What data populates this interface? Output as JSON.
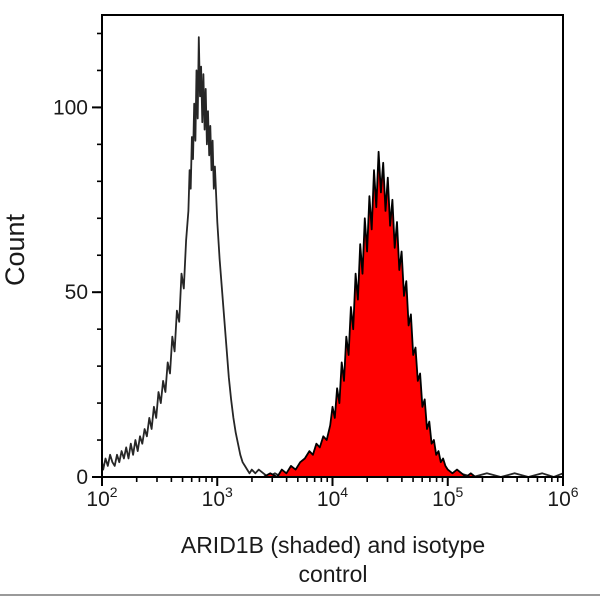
{
  "figure": {
    "ylabel": "Count",
    "xlabel_line1": "ARID1B (shaded) and isotype",
    "xlabel_line2": "control"
  },
  "chart_data": {
    "type": "area",
    "subtype": "flow-cytometry-histogram-overlay",
    "title": "",
    "xlabel": "ARID1B (shaded) and isotype control",
    "ylabel": "Count",
    "x_scale": "log10",
    "x_range_exponents": [
      2,
      6
    ],
    "x_major_tick_exponents": [
      2,
      3,
      4,
      5,
      6
    ],
    "x_major_tick_base": "10",
    "x_minor_tick_multipliers": [
      2,
      3,
      4,
      5,
      6,
      7,
      8,
      9
    ],
    "y_range": [
      0,
      125
    ],
    "y_major_ticks": [
      0,
      50,
      100
    ],
    "y_minor_tick_step": 10,
    "grid": false,
    "legend": "none",
    "colors": {
      "axis": "#000000",
      "isotype_stroke": "#262626",
      "arid1b_fill": "#ff0000",
      "arid1b_stroke": "#000000",
      "bottom_rule": "#9a9a9a"
    },
    "series": [
      {
        "name": "isotype control",
        "style": "open",
        "stroke": "#262626",
        "fill": "none",
        "peak": {
          "x_log10": 2.84,
          "count": 119
        },
        "points_log10_count": [
          [
            2.0,
            4
          ],
          [
            2.01,
            2
          ],
          [
            2.03,
            5
          ],
          [
            2.05,
            3
          ],
          [
            2.07,
            6
          ],
          [
            2.09,
            4
          ],
          [
            2.11,
            3
          ],
          [
            2.13,
            6
          ],
          [
            2.15,
            4
          ],
          [
            2.17,
            7
          ],
          [
            2.19,
            5
          ],
          [
            2.21,
            8
          ],
          [
            2.23,
            5
          ],
          [
            2.25,
            9
          ],
          [
            2.27,
            6
          ],
          [
            2.29,
            10
          ],
          [
            2.31,
            7
          ],
          [
            2.33,
            11
          ],
          [
            2.35,
            9
          ],
          [
            2.37,
            13
          ],
          [
            2.39,
            11
          ],
          [
            2.41,
            16
          ],
          [
            2.43,
            13
          ],
          [
            2.45,
            19
          ],
          [
            2.47,
            16
          ],
          [
            2.49,
            23
          ],
          [
            2.51,
            20
          ],
          [
            2.53,
            26
          ],
          [
            2.55,
            23
          ],
          [
            2.57,
            31
          ],
          [
            2.59,
            28
          ],
          [
            2.61,
            38
          ],
          [
            2.63,
            34
          ],
          [
            2.65,
            45
          ],
          [
            2.67,
            42
          ],
          [
            2.69,
            55
          ],
          [
            2.71,
            51
          ],
          [
            2.73,
            64
          ],
          [
            2.75,
            72
          ],
          [
            2.76,
            83
          ],
          [
            2.77,
            78
          ],
          [
            2.78,
            92
          ],
          [
            2.79,
            86
          ],
          [
            2.8,
            101
          ],
          [
            2.81,
            91
          ],
          [
            2.82,
            110
          ],
          [
            2.83,
            97
          ],
          [
            2.84,
            119
          ],
          [
            2.85,
            103
          ],
          [
            2.86,
            111
          ],
          [
            2.87,
            96
          ],
          [
            2.88,
            109
          ],
          [
            2.89,
            94
          ],
          [
            2.9,
            105
          ],
          [
            2.91,
            90
          ],
          [
            2.92,
            99
          ],
          [
            2.93,
            87
          ],
          [
            2.94,
            95
          ],
          [
            2.95,
            83
          ],
          [
            2.96,
            91
          ],
          [
            2.97,
            78
          ],
          [
            2.98,
            84
          ],
          [
            3.0,
            69
          ],
          [
            3.02,
            59
          ],
          [
            3.04,
            51
          ],
          [
            3.06,
            43
          ],
          [
            3.08,
            35
          ],
          [
            3.1,
            27
          ],
          [
            3.12,
            21
          ],
          [
            3.14,
            16
          ],
          [
            3.16,
            12
          ],
          [
            3.18,
            9
          ],
          [
            3.2,
            6
          ],
          [
            3.22,
            4
          ],
          [
            3.24,
            3
          ],
          [
            3.26,
            2
          ],
          [
            3.28,
            1
          ],
          [
            3.3,
            2
          ],
          [
            3.33,
            1
          ],
          [
            3.36,
            2
          ],
          [
            3.4,
            1
          ],
          [
            3.44,
            0
          ],
          [
            3.5,
            1
          ],
          [
            3.56,
            0
          ],
          [
            3.64,
            1
          ],
          [
            3.72,
            0
          ],
          [
            3.8,
            1
          ],
          [
            3.9,
            0
          ],
          [
            4.0,
            1
          ],
          [
            4.1,
            0
          ],
          [
            4.25,
            1
          ],
          [
            4.4,
            0
          ],
          [
            4.55,
            1
          ],
          [
            4.7,
            0
          ],
          [
            4.85,
            1
          ],
          [
            5.0,
            0
          ],
          [
            5.1,
            1
          ],
          [
            5.22,
            0
          ],
          [
            5.34,
            1
          ],
          [
            5.46,
            0
          ],
          [
            5.58,
            1
          ],
          [
            5.7,
            0
          ],
          [
            5.82,
            1
          ],
          [
            5.92,
            0
          ],
          [
            6.0,
            1
          ]
        ]
      },
      {
        "name": "ARID1B (shaded)",
        "style": "filled",
        "stroke": "#000000",
        "fill": "#ff0000",
        "peak": {
          "x_log10": 4.4,
          "count": 88
        },
        "points_log10_count": [
          [
            3.4,
            0
          ],
          [
            3.46,
            1
          ],
          [
            3.52,
            0
          ],
          [
            3.56,
            2
          ],
          [
            3.6,
            1
          ],
          [
            3.64,
            3
          ],
          [
            3.68,
            2
          ],
          [
            3.72,
            4
          ],
          [
            3.76,
            5
          ],
          [
            3.8,
            7
          ],
          [
            3.83,
            6
          ],
          [
            3.86,
            9
          ],
          [
            3.89,
            8
          ],
          [
            3.92,
            11
          ],
          [
            3.95,
            10
          ],
          [
            3.98,
            14
          ],
          [
            4.0,
            19
          ],
          [
            4.02,
            16
          ],
          [
            4.04,
            24
          ],
          [
            4.06,
            20
          ],
          [
            4.08,
            31
          ],
          [
            4.1,
            26
          ],
          [
            4.12,
            38
          ],
          [
            4.14,
            33
          ],
          [
            4.16,
            46
          ],
          [
            4.18,
            40
          ],
          [
            4.2,
            55
          ],
          [
            4.22,
            48
          ],
          [
            4.24,
            63
          ],
          [
            4.26,
            55
          ],
          [
            4.28,
            70
          ],
          [
            4.3,
            61
          ],
          [
            4.32,
            76
          ],
          [
            4.34,
            67
          ],
          [
            4.36,
            83
          ],
          [
            4.38,
            73
          ],
          [
            4.4,
            88
          ],
          [
            4.42,
            77
          ],
          [
            4.44,
            85
          ],
          [
            4.46,
            72
          ],
          [
            4.48,
            81
          ],
          [
            4.5,
            68
          ],
          [
            4.52,
            75
          ],
          [
            4.54,
            62
          ],
          [
            4.56,
            69
          ],
          [
            4.58,
            56
          ],
          [
            4.6,
            61
          ],
          [
            4.62,
            49
          ],
          [
            4.64,
            53
          ],
          [
            4.66,
            41
          ],
          [
            4.68,
            44
          ],
          [
            4.7,
            33
          ],
          [
            4.72,
            35
          ],
          [
            4.74,
            26
          ],
          [
            4.76,
            28
          ],
          [
            4.78,
            19
          ],
          [
            4.8,
            21
          ],
          [
            4.82,
            13
          ],
          [
            4.84,
            15
          ],
          [
            4.86,
            9
          ],
          [
            4.88,
            10
          ],
          [
            4.9,
            6
          ],
          [
            4.92,
            7
          ],
          [
            4.94,
            4
          ],
          [
            4.96,
            5
          ],
          [
            4.98,
            3
          ],
          [
            5.0,
            2
          ],
          [
            5.04,
            1
          ],
          [
            5.08,
            2
          ],
          [
            5.12,
            1
          ],
          [
            5.16,
            0
          ],
          [
            5.2,
            1
          ],
          [
            5.24,
            0
          ]
        ]
      }
    ]
  }
}
